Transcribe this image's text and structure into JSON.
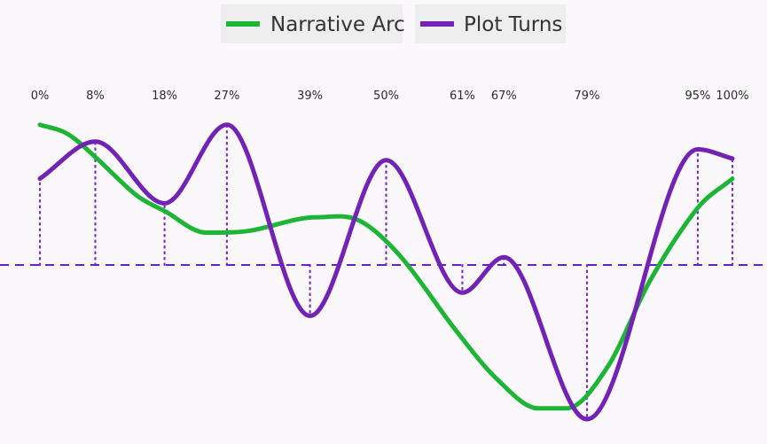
{
  "chart_data": {
    "type": "line",
    "title": "",
    "xlabel": "",
    "ylabel": "",
    "xlim": [
      0,
      100
    ],
    "ylim": [
      -1,
      1
    ],
    "grid": false,
    "legend_position": "top-center",
    "baseline": 0,
    "series": [
      {
        "name": "Narrative Arc",
        "color": "#1db535",
        "x": [
          0,
          4,
          8,
          14,
          18,
          24,
          30,
          40,
          46,
          52,
          60,
          66,
          72,
          76,
          82,
          88,
          95,
          100
        ],
        "y": [
          0.91,
          0.85,
          0.7,
          0.45,
          0.35,
          0.21,
          0.22,
          0.31,
          0.29,
          0.06,
          -0.42,
          -0.74,
          -0.93,
          -0.93,
          -0.66,
          -0.11,
          0.37,
          0.56
        ]
      },
      {
        "name": "Plot Turns",
        "color": "#7222b5",
        "x": [
          0,
          8,
          18,
          27,
          39,
          50,
          61,
          67,
          79,
          95,
          100
        ],
        "y": [
          0.56,
          0.8,
          0.4,
          0.91,
          -0.33,
          0.68,
          -0.18,
          0.05,
          -1.0,
          0.75,
          0.69
        ]
      }
    ],
    "markers": [
      {
        "label": "0%",
        "x": 0
      },
      {
        "label": "8%",
        "x": 8
      },
      {
        "label": "18%",
        "x": 18
      },
      {
        "label": "27%",
        "x": 27
      },
      {
        "label": "39%",
        "x": 39
      },
      {
        "label": "50%",
        "x": 50
      },
      {
        "label": "61%",
        "x": 61
      },
      {
        "label": "67%",
        "x": 67
      },
      {
        "label": "79%",
        "x": 79
      },
      {
        "label": "95%",
        "x": 95
      },
      {
        "label": "100%",
        "x": 100
      }
    ]
  },
  "colors": {
    "baseline": "#6a1fc4",
    "drop_lines": "#7a2ec8",
    "background": "#fbf8fc"
  }
}
